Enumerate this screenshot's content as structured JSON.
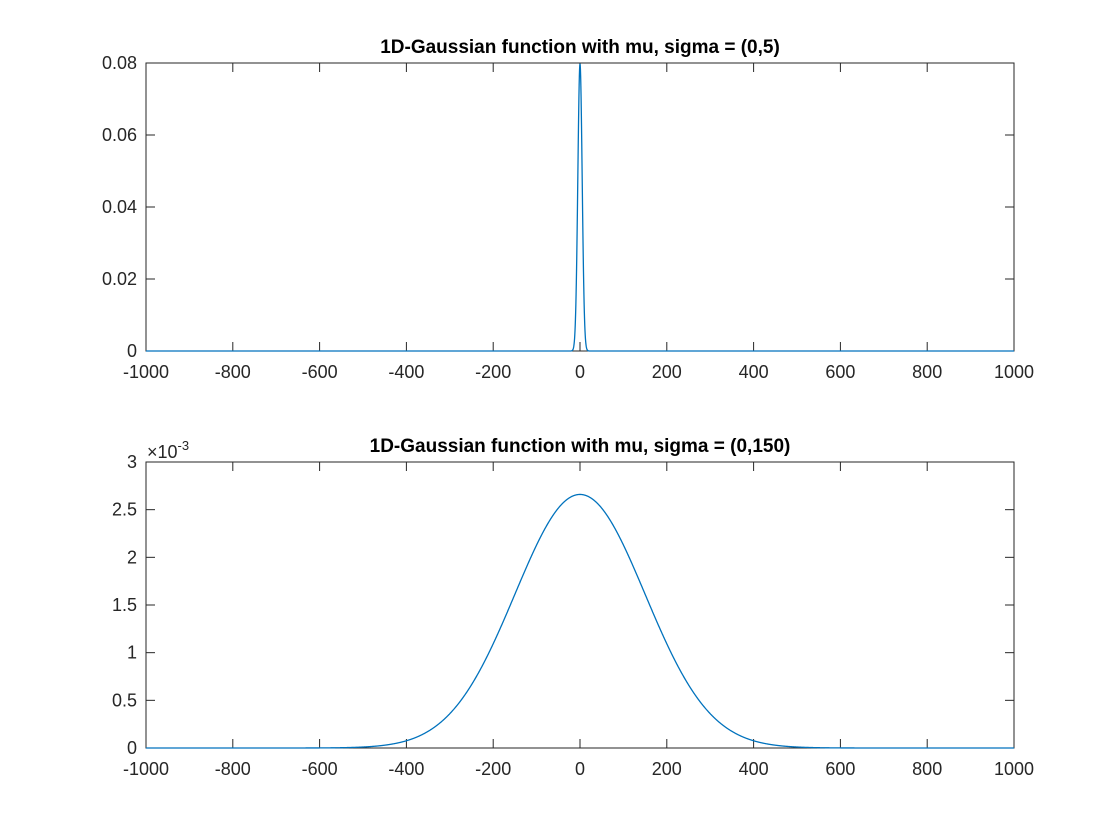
{
  "chart_data": [
    {
      "type": "line",
      "title": "1D-Gaussian function with mu, sigma = (0,5)",
      "mu": 0,
      "sigma": 5,
      "xlim": [
        -1000,
        1000
      ],
      "ylim": [
        0,
        0.08
      ],
      "x_ticks": [
        -1000,
        -800,
        -600,
        -400,
        -200,
        0,
        200,
        400,
        600,
        800,
        1000
      ],
      "x_tick_labels": [
        "-1000",
        "-800",
        "-600",
        "-400",
        "-200",
        "0",
        "200",
        "400",
        "600",
        "800",
        "1000"
      ],
      "y_ticks": [
        0,
        0.02,
        0.04,
        0.06,
        0.08
      ],
      "y_tick_labels": [
        "0",
        "0.02",
        "0.04",
        "0.06",
        "0.08"
      ],
      "y_exponent": "",
      "peak_value": 0.0798,
      "series": [
        {
          "color": "#0072bd",
          "x": [
            -1000,
            -20,
            -15,
            -10,
            -8,
            -6,
            -4,
            -2,
            0,
            2,
            4,
            6,
            8,
            10,
            15,
            20,
            1000
          ],
          "y": [
            0,
            2.68e-05,
            0.000886,
            0.0108,
            0.0222,
            0.0389,
            0.0579,
            0.0737,
            0.0798,
            0.0737,
            0.0579,
            0.0389,
            0.0222,
            0.0108,
            0.000886,
            2.68e-05,
            0
          ]
        }
      ],
      "grid": false
    },
    {
      "type": "line",
      "title": "1D-Gaussian function with mu, sigma = (0,150)",
      "mu": 0,
      "sigma": 150,
      "xlim": [
        -1000,
        1000
      ],
      "ylim": [
        0,
        0.003
      ],
      "x_ticks": [
        -1000,
        -800,
        -600,
        -400,
        -200,
        0,
        200,
        400,
        600,
        800,
        1000
      ],
      "x_tick_labels": [
        "-1000",
        "-800",
        "-600",
        "-400",
        "-200",
        "0",
        "200",
        "400",
        "600",
        "800",
        "1000"
      ],
      "y_ticks": [
        0,
        0.0005,
        0.001,
        0.0015,
        0.002,
        0.0025,
        0.003
      ],
      "y_tick_labels": [
        "0",
        "0.5",
        "1",
        "1.5",
        "2",
        "2.5",
        "3"
      ],
      "y_exponent": "-3",
      "peak_value": 0.00266,
      "series": [
        {
          "color": "#0072bd",
          "x": [
            -1000,
            -800,
            -600,
            -500,
            -400,
            -300,
            -200,
            -100,
            0,
            100,
            200,
            300,
            400,
            500,
            600,
            800,
            1000
          ],
          "y": [
            0,
            2e-08,
            8.9e-07,
            1.04e-05,
            7.55e-05,
            0.00036,
            0.00109,
            0.00213,
            0.00266,
            0.00213,
            0.00109,
            0.00036,
            7.55e-05,
            1.04e-05,
            8.9e-07,
            2e-08,
            0
          ]
        }
      ],
      "grid": false
    }
  ]
}
